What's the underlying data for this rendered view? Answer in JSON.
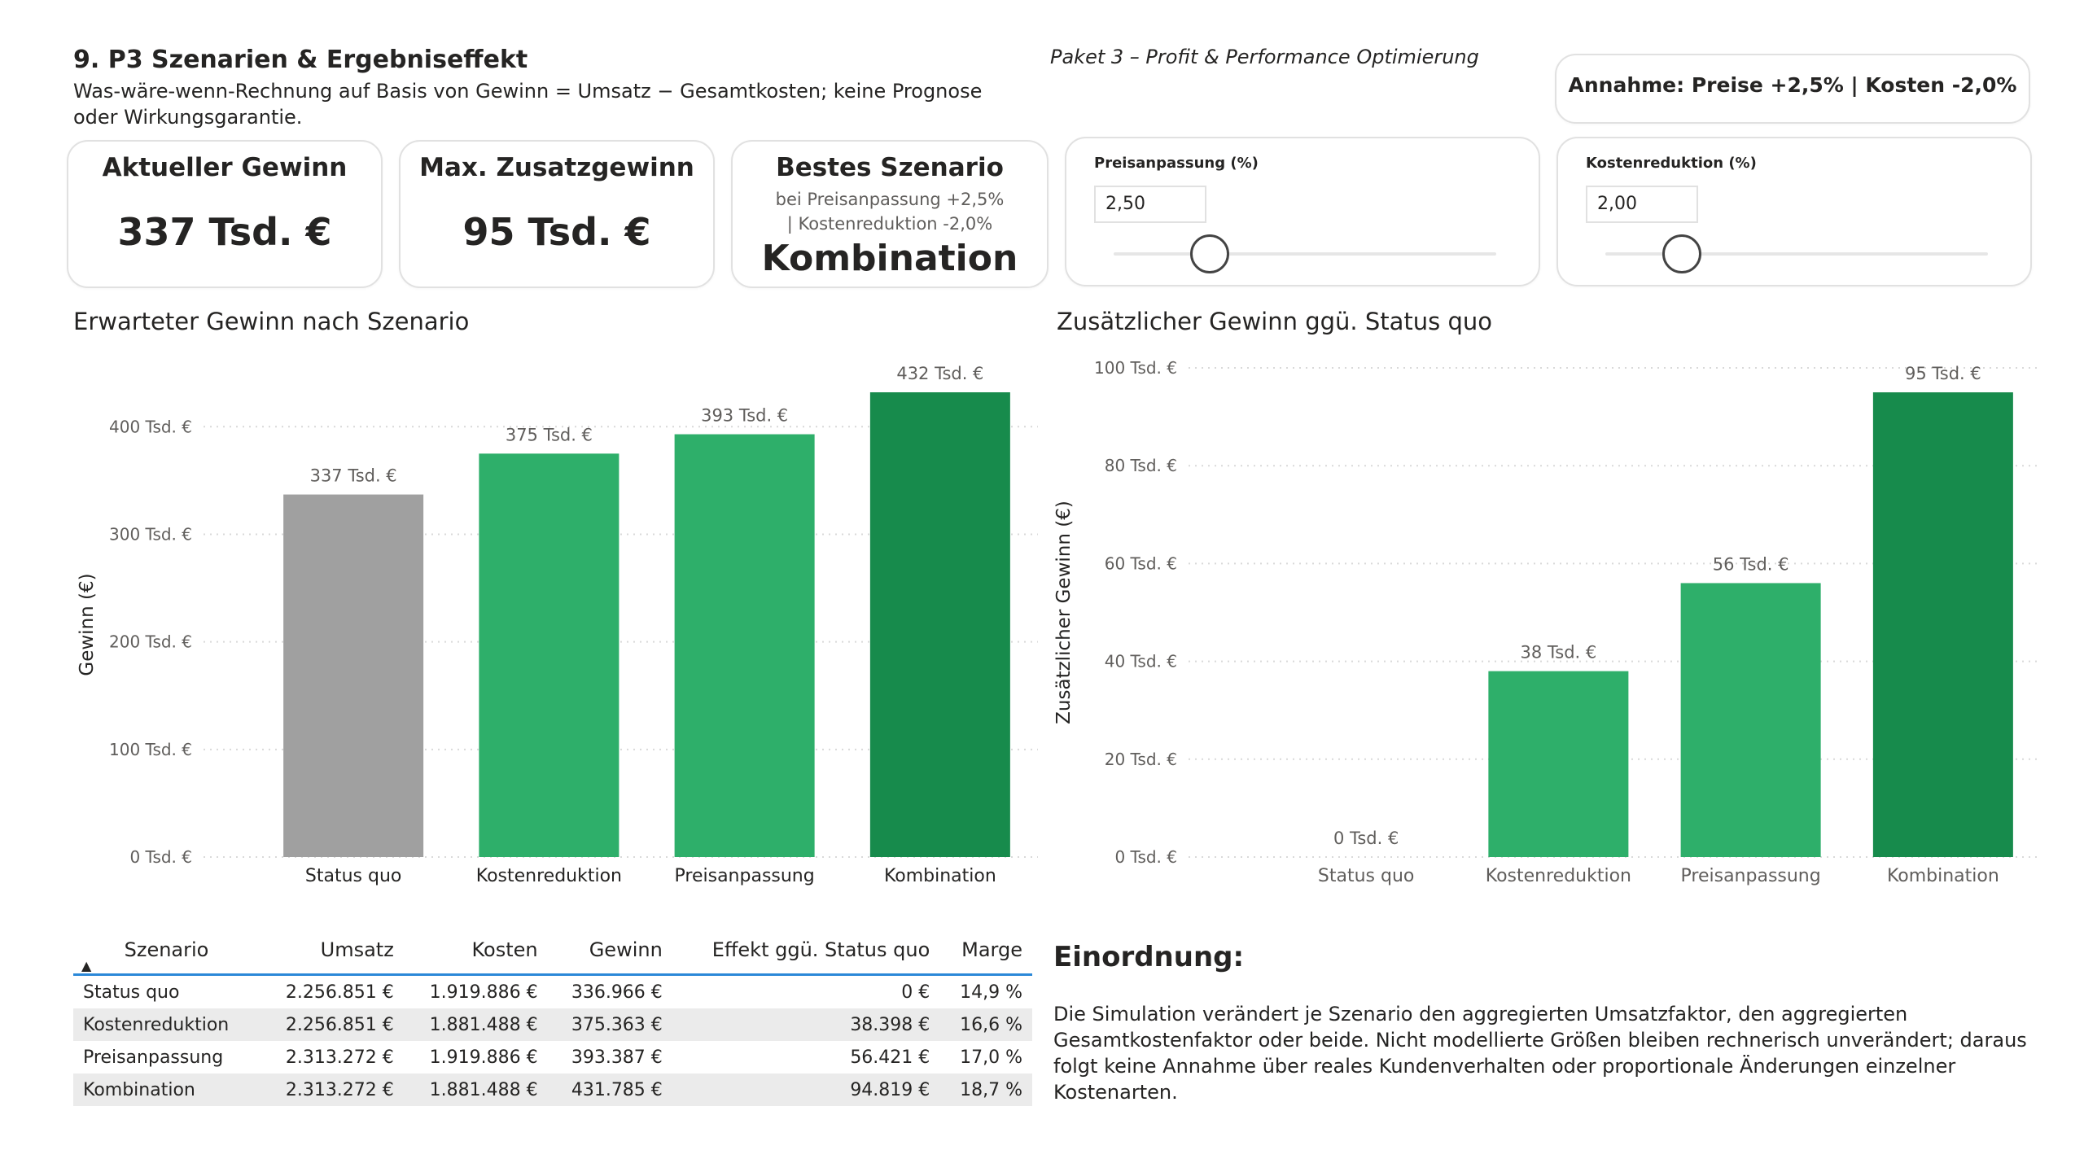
{
  "header": {
    "title": "9. P3 Szenarien & Ergebniseffekt",
    "subtitle": "Was-wäre-wenn-Rechnung auf Basis von Gewinn = Umsatz − Gesamtkosten; keine Prognose oder Wirkungsgarantie.",
    "package": "Paket 3 – Profit & Performance Optimierung",
    "assumption": "Annahme: Preise +2,5% | Kosten -2,0%"
  },
  "kpis": {
    "current_profit": {
      "title": "Aktueller Gewinn",
      "value": "337 Tsd. €"
    },
    "max_additional": {
      "title": "Max. Zusatzgewinn",
      "value": "95 Tsd. €"
    },
    "best_scenario": {
      "title": "Bestes Szenario",
      "sub": "bei Preisanpassung +2,5% | Kostenreduktion -2,0%",
      "value": "Kombination"
    }
  },
  "sliders": {
    "price": {
      "label": "Preisanpassung (%)",
      "value": "2,50",
      "level": 0.25,
      "color": "#444444"
    },
    "cost": {
      "label": "Kostenreduktion (%)",
      "value": "2,00",
      "level": 0.2,
      "color": "#444444"
    }
  },
  "chart_data": [
    {
      "type": "bar",
      "title": "Erwarteter Gewinn nach Szenario",
      "ylabel": "Gewinn (€)",
      "xlabel": "",
      "categories": [
        "Status quo",
        "Kostenreduktion",
        "Preisanpassung",
        "Kombination"
      ],
      "values": [
        337,
        375,
        393,
        432
      ],
      "data_labels": [
        "337 Tsd. €",
        "375 Tsd. €",
        "393 Tsd. €",
        "432 Tsd. €"
      ],
      "colors": [
        "#a0a0a0",
        "#2eaf6a",
        "#2eaf6a",
        "#178b4c"
      ],
      "ylim": [
        0,
        432
      ],
      "yticks": [
        0,
        100,
        200,
        300,
        400
      ],
      "ytick_labels": [
        "0 Tsd. €",
        "100 Tsd. €",
        "200 Tsd. €",
        "300 Tsd. €",
        "400 Tsd. €"
      ],
      "grid": true
    },
    {
      "type": "bar",
      "title": "Zusätzlicher Gewinn ggü. Status quo",
      "ylabel": "Zusätzlicher Gewinn (€)",
      "xlabel": "",
      "categories": [
        "Status quo",
        "Kostenreduktion",
        "Preisanpassung",
        "Kombination"
      ],
      "values": [
        0,
        38,
        56,
        95
      ],
      "data_labels": [
        "0 Tsd. €",
        "38 Tsd. €",
        "56 Tsd. €",
        "95 Tsd. €"
      ],
      "colors": [
        "#a0a0a0",
        "#2eaf6a",
        "#2eaf6a",
        "#178b4c"
      ],
      "ylim": [
        0,
        100
      ],
      "yticks": [
        0,
        20,
        40,
        60,
        80,
        100
      ],
      "ytick_labels": [
        "0 Tsd. €",
        "20 Tsd. €",
        "40 Tsd. €",
        "60 Tsd. €",
        "80 Tsd. €",
        "100 Tsd. €"
      ],
      "grid": true
    }
  ],
  "table": {
    "columns": [
      "Szenario",
      "Umsatz",
      "Kosten",
      "Gewinn",
      "Effekt ggü. Status quo",
      "Marge"
    ],
    "rows": [
      [
        "Status quo",
        "2.256.851 €",
        "1.919.886 €",
        "336.966 €",
        "0 €",
        "14,9 %"
      ],
      [
        "Kostenreduktion",
        "2.256.851 €",
        "1.881.488 €",
        "375.363 €",
        "38.398 €",
        "16,6 %"
      ],
      [
        "Preisanpassung",
        "2.313.272 €",
        "1.919.886 €",
        "393.387 €",
        "56.421 €",
        "17,0 %"
      ],
      [
        "Kombination",
        "2.313.272 €",
        "1.881.488 €",
        "431.785 €",
        "94.819 €",
        "18,7 %"
      ]
    ],
    "accent": "#2b88d8"
  },
  "note": {
    "title": "Einordnung:",
    "text": "Die Simulation verändert je Szenario den aggregierten Umsatzfaktor, den aggregierten Gesamtkostenfaktor oder beide. Nicht modellierte Größen bleiben rechnerisch unverändert; daraus folgt keine Annahme über reales Kundenverhalten oder proportionale Änderungen einzelner Kostenarten."
  }
}
